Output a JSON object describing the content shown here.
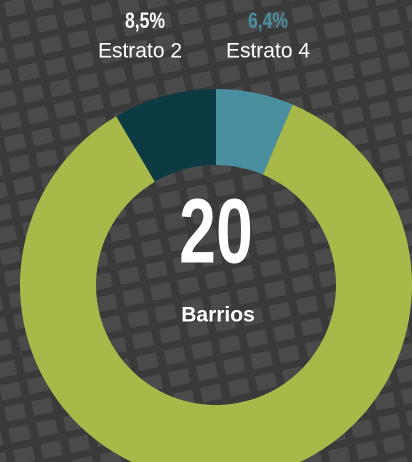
{
  "chart_data": {
    "type": "donut",
    "categories": [
      "Estrato 4",
      null,
      "Estrato 2"
    ],
    "values": [
      6.4,
      85.1,
      8.5
    ],
    "value_labels": [
      "6,4%",
      null,
      "8,5%"
    ],
    "colors": [
      "#4a8fa0",
      "#a8b94a",
      "#0d3b44"
    ],
    "center_text": "20",
    "center_label": "Barrios"
  }
}
